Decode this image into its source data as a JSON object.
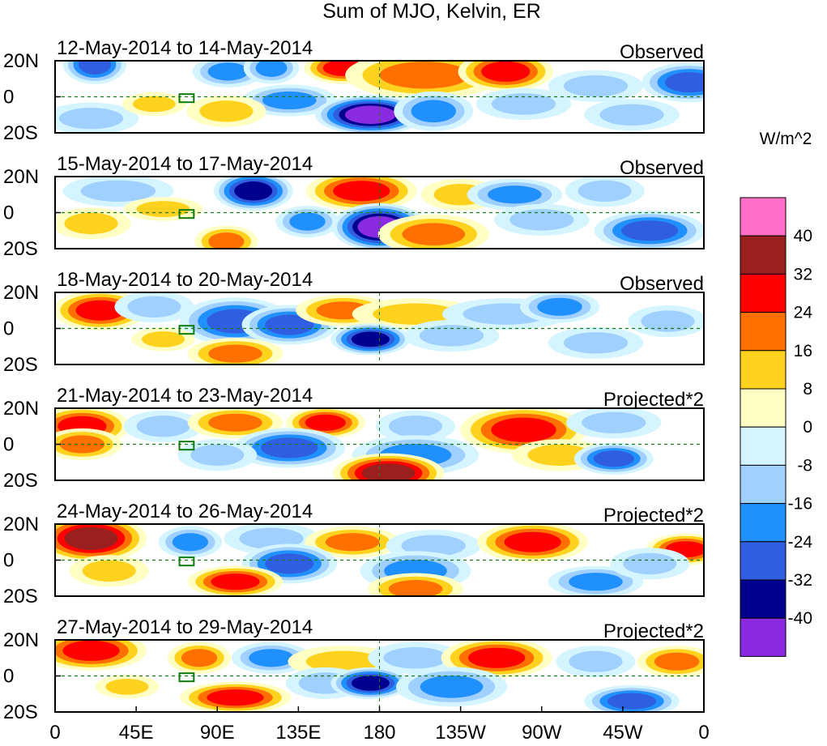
{
  "chart_data": {
    "type": "heatmap",
    "title": "Sum of MJO, Kelvin, ER",
    "units": "W/m^2",
    "panels": [
      {
        "date_range": "12-May-2014 to 14-May-2014",
        "kind": "Observed"
      },
      {
        "date_range": "15-May-2014 to 17-May-2014",
        "kind": "Observed"
      },
      {
        "date_range": "18-May-2014 to 20-May-2014",
        "kind": "Observed"
      },
      {
        "date_range": "21-May-2014 to 23-May-2014",
        "kind": "Projected*2"
      },
      {
        "date_range": "24-May-2014 to 26-May-2014",
        "kind": "Projected*2"
      },
      {
        "date_range": "27-May-2014 to 29-May-2014",
        "kind": "Projected*2"
      }
    ],
    "x_ticks": [
      "0",
      "45E",
      "90E",
      "135E",
      "180",
      "135W",
      "90W",
      "45W",
      "0"
    ],
    "y_ticks": [
      "20N",
      "0",
      "20S"
    ],
    "xlim": [
      0,
      360
    ],
    "ylim": [
      -20,
      20
    ],
    "colorbar": {
      "labels": [
        "40",
        "32",
        "24",
        "16",
        "8",
        "0",
        "-8",
        "-16",
        "-24",
        "-32",
        "-40"
      ],
      "colors": [
        "#ff6ec7",
        "#9a2020",
        "#ff0000",
        "#ff7000",
        "#ffd21e",
        "#ffffc4",
        "#d4f4ff",
        "#9fd0ff",
        "#2190ff",
        "#2f5ee0",
        "#00008f",
        "#8a2be2"
      ]
    },
    "blobs": [
      [
        [
          22,
          18,
          8,
          5,
          -30
        ],
        [
          96,
          14,
          9,
          4,
          -20
        ],
        [
          120,
          16,
          7,
          4,
          -16
        ],
        [
          160,
          16,
          10,
          4,
          24
        ],
        [
          205,
          12,
          20,
          6,
          18
        ],
        [
          250,
          14,
          12,
          5,
          24
        ],
        [
          300,
          6,
          12,
          4,
          -8
        ],
        [
          352,
          8,
          12,
          5,
          -24
        ],
        [
          130,
          -2,
          12,
          4,
          -16
        ],
        [
          175,
          -10,
          14,
          5,
          -42
        ],
        [
          210,
          -8,
          10,
          5,
          -20
        ],
        [
          95,
          -8,
          10,
          4,
          12
        ],
        [
          20,
          -12,
          12,
          4,
          -12
        ],
        [
          55,
          -4,
          8,
          3,
          10
        ],
        [
          260,
          -4,
          12,
          4,
          -8
        ],
        [
          320,
          -10,
          12,
          4,
          -12
        ]
      ],
      [
        [
          35,
          12,
          14,
          4,
          -12
        ],
        [
          110,
          12,
          10,
          5,
          -34
        ],
        [
          170,
          12,
          14,
          5,
          28
        ],
        [
          225,
          10,
          10,
          4,
          12
        ],
        [
          255,
          10,
          12,
          4,
          -16
        ],
        [
          305,
          12,
          10,
          4,
          -8
        ],
        [
          60,
          2,
          10,
          3,
          8
        ],
        [
          140,
          -5,
          8,
          4,
          -16
        ],
        [
          180,
          -8,
          12,
          6,
          -42
        ],
        [
          210,
          -12,
          14,
          5,
          20
        ],
        [
          95,
          -16,
          8,
          4,
          22
        ],
        [
          330,
          -10,
          14,
          5,
          -24
        ],
        [
          20,
          -6,
          10,
          4,
          12
        ],
        [
          270,
          -4,
          12,
          4,
          -10
        ]
      ],
      [
        [
          25,
          10,
          12,
          5,
          28
        ],
        [
          55,
          12,
          10,
          4,
          -8
        ],
        [
          100,
          4,
          14,
          6,
          -28
        ],
        [
          130,
          2,
          12,
          5,
          -24
        ],
        [
          160,
          10,
          12,
          4,
          16
        ],
        [
          200,
          8,
          16,
          4,
          12
        ],
        [
          250,
          8,
          16,
          4,
          -12
        ],
        [
          280,
          12,
          10,
          4,
          -16
        ],
        [
          340,
          4,
          10,
          4,
          -12
        ],
        [
          175,
          -6,
          10,
          4,
          -34
        ],
        [
          100,
          -14,
          12,
          4,
          18
        ],
        [
          220,
          -4,
          12,
          4,
          -10
        ],
        [
          300,
          -8,
          12,
          4,
          -12
        ],
        [
          60,
          -6,
          8,
          3,
          8
        ]
      ],
      [
        [
          15,
          10,
          12,
          5,
          28
        ],
        [
          60,
          10,
          10,
          4,
          -12
        ],
        [
          100,
          12,
          12,
          4,
          16
        ],
        [
          150,
          12,
          10,
          4,
          24
        ],
        [
          200,
          10,
          10,
          4,
          -12
        ],
        [
          260,
          8,
          16,
          6,
          26
        ],
        [
          310,
          12,
          12,
          4,
          -8
        ],
        [
          15,
          0,
          10,
          4,
          20
        ],
        [
          130,
          -2,
          14,
          5,
          -24
        ],
        [
          200,
          -6,
          16,
          5,
          -16
        ],
        [
          280,
          -6,
          12,
          4,
          12
        ],
        [
          310,
          -8,
          10,
          4,
          -30
        ],
        [
          185,
          -16,
          14,
          5,
          34
        ],
        [
          90,
          -6,
          10,
          4,
          -8
        ]
      ],
      [
        [
          20,
          12,
          14,
          6,
          32
        ],
        [
          75,
          10,
          8,
          4,
          -16
        ],
        [
          120,
          12,
          12,
          4,
          -10
        ],
        [
          165,
          10,
          12,
          4,
          16
        ],
        [
          210,
          8,
          12,
          4,
          -12
        ],
        [
          265,
          10,
          14,
          5,
          26
        ],
        [
          350,
          6,
          10,
          4,
          24
        ],
        [
          130,
          -2,
          12,
          5,
          -24
        ],
        [
          200,
          -6,
          14,
          5,
          -16
        ],
        [
          100,
          -12,
          12,
          4,
          24
        ],
        [
          200,
          -16,
          12,
          4,
          20
        ],
        [
          300,
          -12,
          12,
          4,
          -16
        ],
        [
          30,
          -6,
          10,
          4,
          8
        ],
        [
          330,
          -2,
          10,
          4,
          -8
        ]
      ],
      [
        [
          20,
          14,
          14,
          5,
          28
        ],
        [
          80,
          10,
          8,
          4,
          16
        ],
        [
          120,
          10,
          10,
          4,
          -16
        ],
        [
          160,
          8,
          14,
          4,
          12
        ],
        [
          200,
          10,
          12,
          4,
          -8
        ],
        [
          245,
          10,
          14,
          5,
          26
        ],
        [
          300,
          8,
          10,
          4,
          -8
        ],
        [
          345,
          8,
          10,
          4,
          16
        ],
        [
          100,
          -12,
          14,
          4,
          26
        ],
        [
          150,
          -4,
          10,
          4,
          -12
        ],
        [
          175,
          -4,
          10,
          4,
          -34
        ],
        [
          220,
          -6,
          14,
          5,
          -16
        ],
        [
          320,
          -14,
          12,
          4,
          -24
        ],
        [
          40,
          -6,
          8,
          3,
          8
        ]
      ]
    ]
  }
}
